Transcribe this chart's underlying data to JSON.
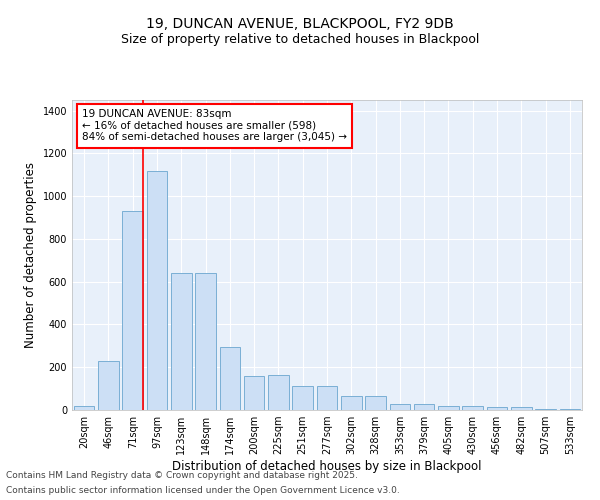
{
  "title_line1": "19, DUNCAN AVENUE, BLACKPOOL, FY2 9DB",
  "title_line2": "Size of property relative to detached houses in Blackpool",
  "xlabel": "Distribution of detached houses by size in Blackpool",
  "ylabel": "Number of detached properties",
  "bar_color": "#ccdff5",
  "bar_edge_color": "#7aafd4",
  "categories": [
    "20sqm",
    "46sqm",
    "71sqm",
    "97sqm",
    "123sqm",
    "148sqm",
    "174sqm",
    "200sqm",
    "225sqm",
    "251sqm",
    "277sqm",
    "302sqm",
    "328sqm",
    "353sqm",
    "379sqm",
    "405sqm",
    "430sqm",
    "456sqm",
    "482sqm",
    "507sqm",
    "533sqm"
  ],
  "values": [
    20,
    230,
    930,
    1120,
    640,
    640,
    295,
    160,
    165,
    110,
    110,
    65,
    65,
    30,
    30,
    20,
    20,
    12,
    12,
    5,
    3
  ],
  "red_line_index": 2,
  "annotation_text": "19 DUNCAN AVENUE: 83sqm\n← 16% of detached houses are smaller (598)\n84% of semi-detached houses are larger (3,045) →",
  "annotation_box_color": "white",
  "annotation_box_edge": "red",
  "ylim": [
    0,
    1450
  ],
  "yticks": [
    0,
    200,
    400,
    600,
    800,
    1000,
    1200,
    1400
  ],
  "background_color": "#e8f0fa",
  "grid_color": "white",
  "footer_line1": "Contains HM Land Registry data © Crown copyright and database right 2025.",
  "footer_line2": "Contains public sector information licensed under the Open Government Licence v3.0.",
  "title_fontsize": 10,
  "subtitle_fontsize": 9,
  "axis_label_fontsize": 8.5,
  "tick_fontsize": 7,
  "annotation_fontsize": 7.5,
  "footer_fontsize": 6.5
}
